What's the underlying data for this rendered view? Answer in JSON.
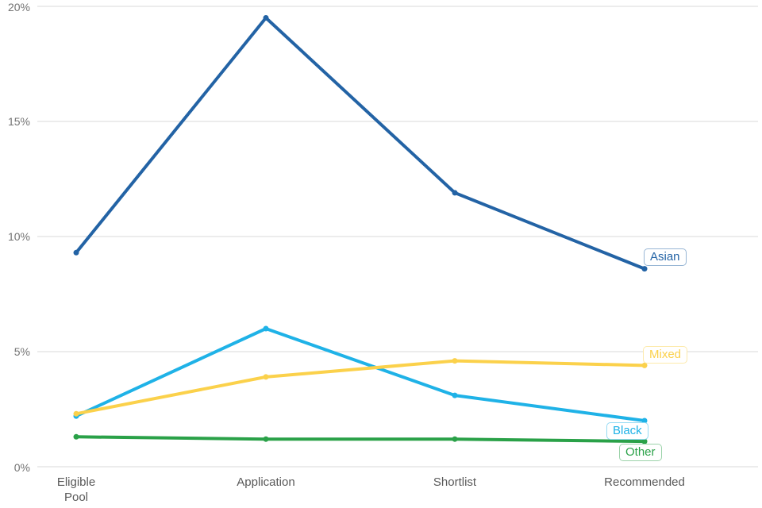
{
  "chart_data": {
    "type": "line",
    "title": "",
    "categories": [
      "Eligible Pool",
      "Application",
      "Shortlist",
      "Recommended"
    ],
    "unit": "%",
    "ylim": [
      0,
      20
    ],
    "ytick_interval": 5,
    "grid": "horizontal-only",
    "legend_position": "end-of-line-labels",
    "gridline_color": "#d9d9d9",
    "axis_text_color": "#737373",
    "yticks": [
      {
        "label": "20%",
        "value": 20
      },
      {
        "label": "15%",
        "value": 15
      },
      {
        "label": "10%",
        "value": 10
      },
      {
        "label": "5%",
        "value": 5
      },
      {
        "label": "0%",
        "value": 0
      }
    ],
    "series": [
      {
        "name": "Asian",
        "color": "#2363a5",
        "values": [
          9.3,
          19.5,
          11.9,
          8.6
        ]
      },
      {
        "name": "Black",
        "color": "#1fb2e7",
        "values": [
          2.2,
          6.0,
          3.1,
          2.0
        ]
      },
      {
        "name": "Mixed",
        "color": "#fbd14b",
        "values": [
          2.3,
          3.9,
          4.6,
          4.4
        ]
      },
      {
        "name": "Other",
        "color": "#2aa148",
        "values": [
          1.3,
          1.2,
          1.2,
          1.1
        ]
      }
    ]
  }
}
